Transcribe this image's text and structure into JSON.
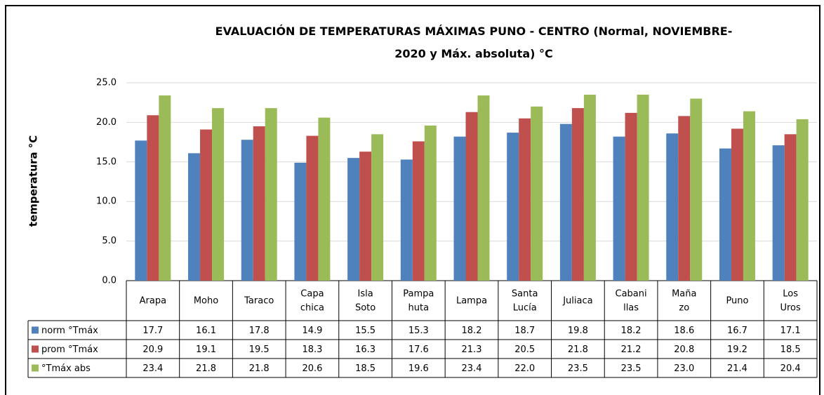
{
  "chart_data": {
    "type": "bar",
    "title": "EVALUACIÓN DE TEMPERATURAS MÁXIMAS PUNO - CENTRO (Normal, NOVIEMBRE-2020 y Máx. absoluta) °C",
    "y_label": "temperatura °C",
    "categories": [
      "Arapa",
      "Moho",
      "Taraco",
      "Capa chica",
      "Isla Soto",
      "Pampa huta",
      "Lampa",
      "Santa Lucía",
      "Juliaca",
      "Cabani llas",
      "Maña zo",
      "Puno",
      "Los Uros"
    ],
    "series": [
      {
        "name": "norm °Tmáx",
        "color": "#4f81bd",
        "values": [
          17.7,
          16.1,
          17.8,
          14.9,
          15.5,
          15.3,
          18.2,
          18.7,
          19.8,
          18.2,
          18.6,
          16.7,
          17.1
        ],
        "value_labels": [
          "17.7",
          "16.1",
          "17.8",
          "14.9",
          "15.5",
          "15.3",
          "18.2",
          "18.7",
          "19.8",
          "18.2",
          "18.6",
          "16.7",
          "17.1"
        ]
      },
      {
        "name": "prom °Tmáx",
        "color": "#c0504d",
        "values": [
          20.9,
          19.1,
          19.5,
          18.3,
          16.3,
          17.6,
          21.3,
          20.5,
          21.8,
          21.2,
          20.8,
          19.2,
          18.5
        ],
        "value_labels": [
          "20.9",
          "19.1",
          "19.5",
          "18.3",
          "16.3",
          "17.6",
          "21.3",
          "20.5",
          "21.8",
          "21.2",
          "20.8",
          "19.2",
          "18.5"
        ]
      },
      {
        "name": "°Tmáx abs",
        "color": "#9bbb59",
        "values": [
          23.4,
          21.8,
          21.8,
          20.6,
          18.5,
          19.6,
          23.4,
          22,
          23.5,
          23.5,
          23,
          21.4,
          20.4
        ],
        "value_labels": [
          "23.4",
          "21.8",
          "21.8",
          "20.6",
          "18.5",
          "19.6",
          "23.4",
          "22.0",
          "23.5",
          "23.5",
          "23.0",
          "21.4",
          "20.4"
        ]
      }
    ],
    "ylim": [
      0,
      25
    ],
    "yticks": [
      {
        "value": 0,
        "label": "0.0"
      },
      {
        "value": 5,
        "label": "5.0"
      },
      {
        "value": 10,
        "label": "10.0"
      },
      {
        "value": 15,
        "label": "15.0"
      },
      {
        "value": 20,
        "label": "20.0"
      },
      {
        "value": 25,
        "label": "25.0"
      }
    ],
    "grid": true
  }
}
